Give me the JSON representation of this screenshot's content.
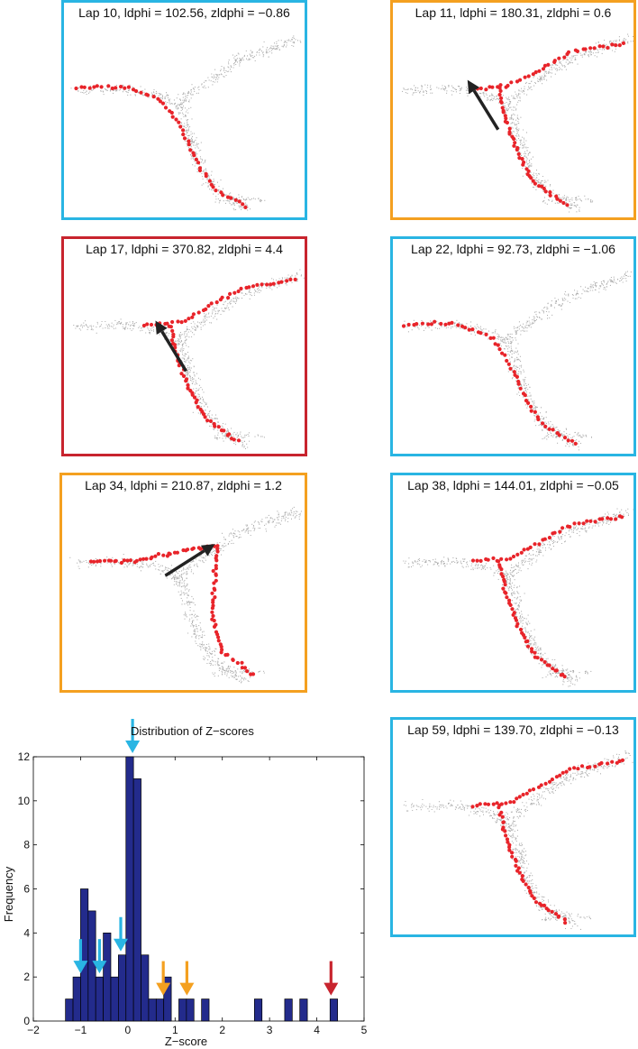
{
  "colors": {
    "blue": "#29b5e3",
    "orange": "#f4a020",
    "red": "#c8242e",
    "bar": "#232b8c",
    "cloud": "#9a9a9a",
    "spike": "#e8242a"
  },
  "panels": [
    {
      "title": "Lap 10, ldphi = 102.56, zldphi = −0.86",
      "color": "blue",
      "pattern": "left",
      "arrow": false
    },
    {
      "title": "Lap 11, ldphi = 180.31, zldphi = 0.6",
      "color": "orange",
      "pattern": "right",
      "arrow": true
    },
    {
      "title": "Lap 17, ldphi = 370.82, zldphi = 4.4",
      "color": "red",
      "pattern": "right",
      "arrow": true
    },
    {
      "title": "Lap 22, ldphi = 92.73, zldphi = −1.06",
      "color": "blue",
      "pattern": "left",
      "arrow": false
    },
    {
      "title": "Lap 34, ldphi = 210.87, zldphi = 1.2",
      "color": "orange",
      "pattern": "leftbranch",
      "arrow": true
    },
    {
      "title": "Lap 38, ldphi = 144.01, zldphi = −0.05",
      "color": "blue",
      "pattern": "right",
      "arrow": false
    },
    {
      "title": "Lap 59, ldphi = 139.70, zldphi = −0.13",
      "color": "blue",
      "pattern": "right",
      "arrow": false
    }
  ],
  "chart_data": {
    "type": "bar",
    "title": "Distribution of Z−scores",
    "xlabel": "Z−score",
    "ylabel": "Frequency",
    "xlim": [
      -2,
      5
    ],
    "ylim": [
      0,
      12
    ],
    "xticks": [
      "−2",
      "−1",
      "0",
      "1",
      "2",
      "3",
      "4",
      "5"
    ],
    "yticks": [
      "0",
      "2",
      "4",
      "6",
      "8",
      "10",
      "12"
    ],
    "bin_width": 0.16,
    "bins": [
      {
        "x": -1.32,
        "count": 1
      },
      {
        "x": -1.16,
        "count": 2
      },
      {
        "x": -1.0,
        "count": 6
      },
      {
        "x": -0.84,
        "count": 5
      },
      {
        "x": -0.68,
        "count": 2
      },
      {
        "x": -0.52,
        "count": 4
      },
      {
        "x": -0.36,
        "count": 2
      },
      {
        "x": -0.2,
        "count": 3
      },
      {
        "x": -0.04,
        "count": 12
      },
      {
        "x": 0.12,
        "count": 11
      },
      {
        "x": 0.28,
        "count": 3
      },
      {
        "x": 0.44,
        "count": 1
      },
      {
        "x": 0.6,
        "count": 1
      },
      {
        "x": 0.76,
        "count": 2
      },
      {
        "x": 1.08,
        "count": 1
      },
      {
        "x": 1.24,
        "count": 1
      },
      {
        "x": 1.56,
        "count": 1
      },
      {
        "x": 2.68,
        "count": 1
      },
      {
        "x": 3.32,
        "count": 1
      },
      {
        "x": 3.64,
        "count": 1
      },
      {
        "x": 4.28,
        "count": 1
      }
    ],
    "markers": [
      {
        "z": -1.0,
        "color": "blue"
      },
      {
        "z": -0.6,
        "color": "blue"
      },
      {
        "z": -0.15,
        "color": "blue"
      },
      {
        "z": 0.1,
        "color": "blue"
      },
      {
        "z": 0.75,
        "color": "orange"
      },
      {
        "z": 1.25,
        "color": "orange"
      },
      {
        "z": 4.3,
        "color": "red"
      }
    ]
  }
}
